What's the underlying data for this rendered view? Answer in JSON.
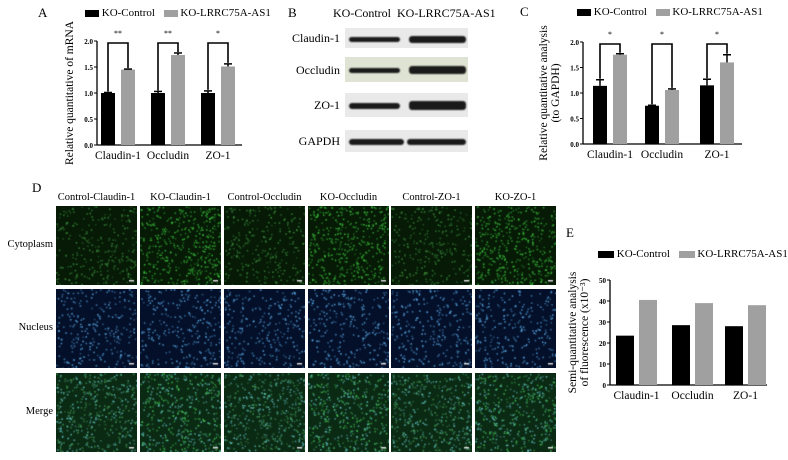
{
  "panels": {
    "a": "A",
    "b": "B",
    "c": "C",
    "d": "D",
    "e": "E"
  },
  "legend": {
    "control": "KO-Control",
    "ko": "KO-LRRC75A-AS1"
  },
  "colors": {
    "control": "#000000",
    "ko": "#a0a0a0"
  },
  "western_blot": {
    "headers": [
      "KO-Control",
      "KO-LRRC75A-AS1"
    ],
    "rows": [
      "Claudin-1",
      "Occludin",
      "ZO-1",
      "GAPDH"
    ]
  },
  "immunofluorescence": {
    "columns": [
      "Control-Claudin-1",
      "KO-Claudin-1",
      "Control-Occludin",
      "KO-Occludin",
      "Control-ZO-1",
      "KO-ZO-1"
    ],
    "rows": [
      "Cytoplasm",
      "Nucleus",
      "Merge"
    ]
  },
  "chart_data": [
    {
      "panel": "A",
      "type": "bar",
      "ylabel": "Relative quantitative of mRNA",
      "categories": [
        "Claudin-1",
        "Occludin",
        "ZO-1"
      ],
      "ylim": [
        0,
        2.0
      ],
      "yticks": [
        "0.0",
        "0.5",
        "1.0",
        "1.5",
        "2.0"
      ],
      "series": [
        {
          "name": "KO-Control",
          "values": [
            1.0,
            1.0,
            1.0
          ],
          "errors": [
            0.01,
            0.03,
            0.04
          ]
        },
        {
          "name": "KO-LRRC75A-AS1",
          "values": [
            1.45,
            1.73,
            1.51
          ],
          "errors": [
            0.01,
            0.04,
            0.05
          ]
        }
      ],
      "significance": [
        "**",
        "**",
        "*"
      ]
    },
    {
      "panel": "C",
      "type": "bar",
      "ylabel": "Relative quantitative analysis (to GAPDH)",
      "ylabel_lines": [
        "Relative quantitative analysis",
        "(to GAPDH)"
      ],
      "categories": [
        "Claudin-1",
        "Occludin",
        "ZO-1"
      ],
      "ylim": [
        0,
        2.0
      ],
      "yticks": [
        "0.0",
        "0.5",
        "1.0",
        "1.5",
        "2.0"
      ],
      "series": [
        {
          "name": "KO-Control",
          "values": [
            1.14,
            0.75,
            1.15
          ],
          "errors": [
            0.12,
            0.01,
            0.12
          ]
        },
        {
          "name": "KO-LRRC75A-AS1",
          "values": [
            1.75,
            1.06,
            1.6
          ],
          "errors": [
            0.02,
            0.02,
            0.15
          ]
        }
      ],
      "significance": [
        "*",
        "*",
        "*"
      ]
    },
    {
      "panel": "E",
      "type": "bar",
      "ylabel": "Semi-quantitative analysis of fluorescence (x10⁻³)",
      "ylabel_lines": [
        "Semi-quantitative analysis",
        "of fluorescence (x10⁻³)"
      ],
      "categories": [
        "Claudin-1",
        "Occludin",
        "ZO-1"
      ],
      "ylim": [
        0,
        50
      ],
      "yticks": [
        "0",
        "10",
        "20",
        "30",
        "40",
        "50"
      ],
      "series": [
        {
          "name": "KO-Control",
          "values": [
            23.5,
            28.5,
            28
          ]
        },
        {
          "name": "KO-LRRC75A-AS1",
          "values": [
            40.5,
            39,
            38
          ]
        }
      ]
    }
  ]
}
